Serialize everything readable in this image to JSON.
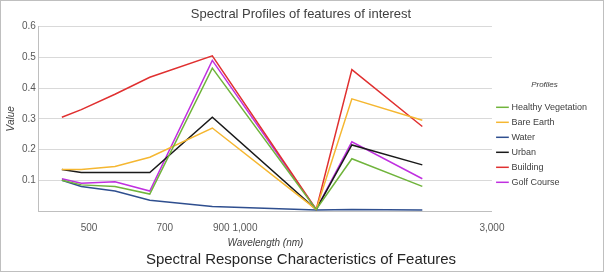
{
  "chart_data": {
    "type": "line",
    "title": "Spectral Profiles of features of interest",
    "subtitle": "Spectral Response Characteristics of Features",
    "x_label": "Wavelength (nm)",
    "y_label": "Value",
    "legend_title": "Profiles",
    "legend": "right",
    "log": "x",
    "grid": true,
    "x": [
      443,
      483,
      561,
      655,
      865,
      1373,
      1609,
      2201
    ],
    "xlim": [
      400,
      3000
    ],
    "xticks": [
      500,
      700,
      900,
      {
        "value": 1000,
        "label": "1,000"
      },
      {
        "value": 3000,
        "label": "3,000"
      }
    ],
    "ylim": [
      0,
      0.6
    ],
    "yticks": [
      0.1,
      0.2,
      0.3,
      0.4,
      0.5,
      0.6
    ],
    "series": [
      {
        "name": "Healthy Vegetation",
        "color": "#70b43c",
        "values": [
          0.1,
          0.085,
          0.08,
          0.055,
          0.465,
          0.005,
          0.17,
          0.08
        ]
      },
      {
        "name": "Bare Earth",
        "color": "#f5b731",
        "values": [
          0.135,
          0.135,
          0.145,
          0.175,
          0.27,
          0.005,
          0.365,
          0.295
        ]
      },
      {
        "name": "Water",
        "color": "#2f4f8f",
        "values": [
          0.1,
          0.08,
          0.065,
          0.035,
          0.015,
          0.003,
          0.005,
          0.003
        ]
      },
      {
        "name": "Urban",
        "color": "#1a1a1a",
        "values": [
          0.135,
          0.125,
          0.125,
          0.125,
          0.305,
          0.005,
          0.215,
          0.15
        ]
      },
      {
        "name": "Building",
        "color": "#e03030",
        "values": [
          0.305,
          0.33,
          0.38,
          0.435,
          0.505,
          0.005,
          0.46,
          0.275
        ]
      },
      {
        "name": "Golf Course",
        "color": "#c030e0",
        "values": [
          0.105,
          0.09,
          0.095,
          0.065,
          0.49,
          0.005,
          0.225,
          0.105
        ]
      }
    ]
  }
}
